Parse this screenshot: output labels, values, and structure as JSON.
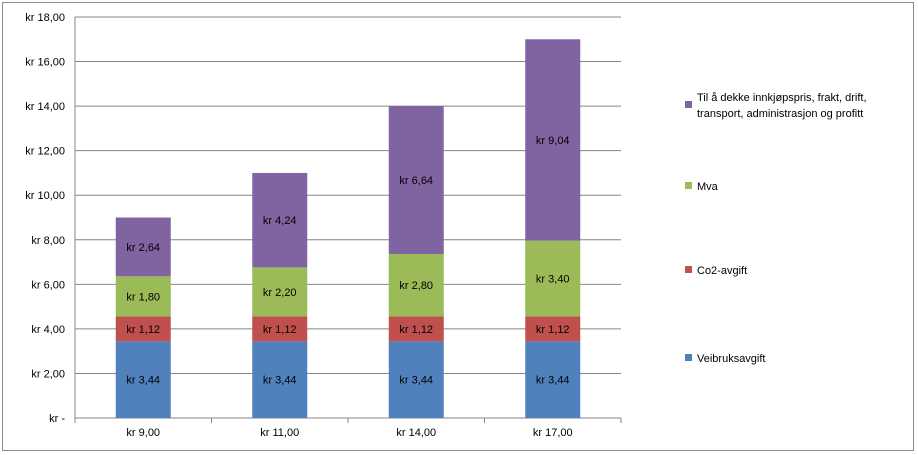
{
  "chart_data": {
    "type": "bar",
    "stacked": true,
    "categories": [
      "kr 9,00",
      "kr 11,00",
      "kr 14,00",
      "kr 17,00"
    ],
    "series": [
      {
        "name": "Veibruksavgift",
        "values": [
          3.44,
          3.44,
          3.44,
          3.44
        ],
        "labels": [
          "kr 3,44",
          "kr 3,44",
          "kr 3,44",
          "kr 3,44"
        ],
        "color": "#4f81bd"
      },
      {
        "name": "Co2-avgift",
        "values": [
          1.12,
          1.12,
          1.12,
          1.12
        ],
        "labels": [
          "kr 1,12",
          "kr 1,12",
          "kr 1,12",
          "kr 1,12"
        ],
        "color": "#c0504d"
      },
      {
        "name": "Mva",
        "values": [
          1.8,
          2.2,
          2.8,
          3.4
        ],
        "labels": [
          "kr 1,80",
          "kr 2,20",
          "kr 2,80",
          "kr 3,40"
        ],
        "color": "#9bbb59"
      },
      {
        "name": "Til å dekke innkjøpspris, frakt, drift, transport, administrasjon og profitt",
        "legend_lines": [
          "Til å dekke innkjøpspris, frakt, drift,",
          "transport, administrasjon og profitt"
        ],
        "values": [
          2.64,
          4.24,
          6.64,
          9.04
        ],
        "labels": [
          "kr 2,64",
          "kr 4,24",
          "kr 6,64",
          "kr 9,04"
        ],
        "color": "#8064a2"
      }
    ],
    "ylim": [
      0,
      18
    ],
    "yticks": [
      0,
      2,
      4,
      6,
      8,
      10,
      12,
      14,
      16,
      18
    ],
    "ytick_labels": [
      "kr -",
      "kr 2,00",
      "kr 4,00",
      "kr 6,00",
      "kr 8,00",
      "kr 10,00",
      "kr 12,00",
      "kr 14,00",
      "kr 16,00",
      "kr 18,00"
    ],
    "grid": true,
    "legend_position": "right",
    "title": "",
    "xlabel": "",
    "ylabel": ""
  }
}
